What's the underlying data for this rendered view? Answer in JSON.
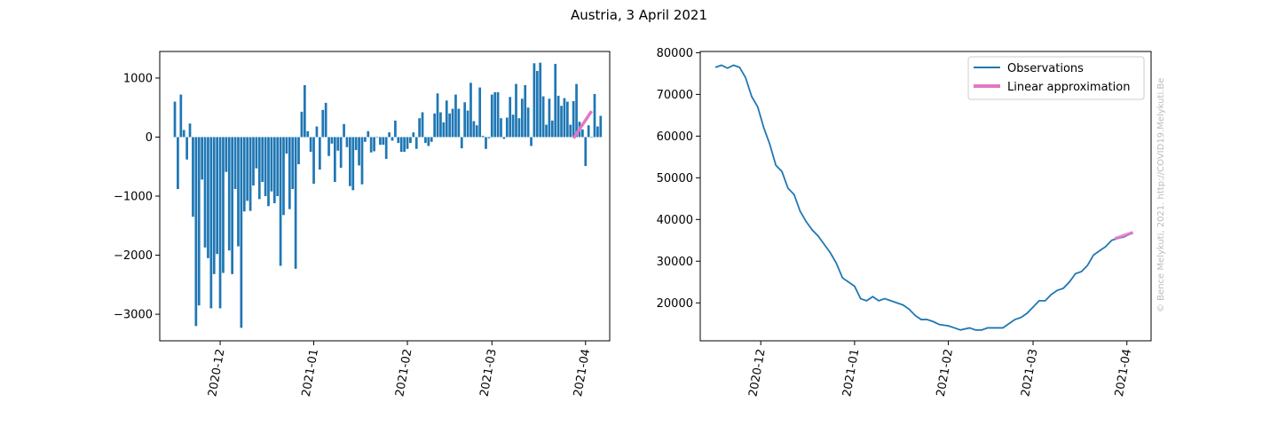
{
  "figure_title": "Austria, 3 April 2021",
  "credit": "© Bence Melykuti, 2021. http://COVID19.Melykuti.Be",
  "colors": {
    "observations": "#1f77b4",
    "linear": "#e377c2",
    "axis": "#000000",
    "credit": "#bbbbbb"
  },
  "chart_data": [
    {
      "type": "bar",
      "title": "",
      "xlabel": "",
      "ylabel": "",
      "x_start_date": "2020-11-16",
      "xlim": [
        "2020-11-11",
        "2021-04-09"
      ],
      "ylim": [
        -3450,
        1450
      ],
      "yticks": [
        -3000,
        -2000,
        -1000,
        0,
        1000
      ],
      "ytick_labels": [
        "−3000",
        "−2000",
        "−1000",
        "0",
        "1000"
      ],
      "xticks": [
        "2020-12-01",
        "2021-01-01",
        "2021-02-01",
        "2021-03-01",
        "2021-04-01"
      ],
      "xtick_labels": [
        "2020-12",
        "2021-01",
        "2021-02",
        "2021-03",
        "2021-04"
      ],
      "grid": false,
      "values": [
        600,
        -880,
        720,
        120,
        -380,
        230,
        -1350,
        -3200,
        -2850,
        -720,
        -1870,
        -2050,
        -2900,
        -2320,
        -1980,
        -2900,
        -2300,
        -590,
        -1920,
        -2320,
        -880,
        -1850,
        -3230,
        -1260,
        -1080,
        -1250,
        -820,
        -530,
        -1050,
        -760,
        -1000,
        -1170,
        -920,
        -1120,
        -1000,
        -2180,
        -1320,
        -280,
        -1220,
        -880,
        -2230,
        -460,
        430,
        880,
        100,
        -250,
        -790,
        180,
        -550,
        460,
        580,
        -320,
        -110,
        -760,
        -230,
        -520,
        220,
        -170,
        -830,
        -900,
        -220,
        -480,
        -800,
        -80,
        100,
        -260,
        -240,
        -10,
        -130,
        -130,
        -370,
        80,
        -60,
        280,
        -100,
        -250,
        -250,
        -200,
        -100,
        80,
        -200,
        320,
        420,
        -100,
        -150,
        -80,
        400,
        740,
        420,
        250,
        620,
        400,
        480,
        720,
        480,
        -190,
        590,
        450,
        920,
        270,
        200,
        840,
        20,
        -200,
        -20,
        720,
        760,
        760,
        320,
        -30,
        330,
        680,
        380,
        900,
        320,
        650,
        880,
        500,
        -150,
        1250,
        1120,
        1260,
        690,
        210,
        650,
        280,
        1240,
        700,
        530,
        660,
        600,
        210,
        610,
        900,
        260,
        130,
        -490,
        200,
        0,
        730,
        180,
        360
      ],
      "series": [
        {
          "name": "Linear approximation",
          "x": [
            "2021-03-28",
            "2021-04-03"
          ],
          "y": [
            -20,
            440
          ]
        }
      ]
    },
    {
      "type": "line",
      "title": "",
      "xlabel": "",
      "ylabel": "",
      "xlim": [
        "2020-11-11",
        "2021-04-09"
      ],
      "ylim": [
        10900,
        80300
      ],
      "yticks": [
        20000,
        30000,
        40000,
        50000,
        60000,
        70000,
        80000
      ],
      "ytick_labels": [
        "20000",
        "30000",
        "40000",
        "50000",
        "60000",
        "70000",
        "80000"
      ],
      "xticks": [
        "2020-12-01",
        "2021-01-01",
        "2021-02-01",
        "2021-03-01",
        "2021-04-01"
      ],
      "xtick_labels": [
        "2020-12",
        "2021-01",
        "2021-02",
        "2021-03",
        "2021-04"
      ],
      "grid": false,
      "legend_position": "top-right",
      "series": [
        {
          "name": "Observations",
          "x": [
            "2020-11-16",
            "2020-11-18",
            "2020-11-20",
            "2020-11-22",
            "2020-11-24",
            "2020-11-26",
            "2020-11-28",
            "2020-11-30",
            "2020-12-02",
            "2020-12-04",
            "2020-12-06",
            "2020-12-08",
            "2020-12-10",
            "2020-12-12",
            "2020-12-14",
            "2020-12-16",
            "2020-12-18",
            "2020-12-20",
            "2020-12-22",
            "2020-12-24",
            "2020-12-26",
            "2020-12-28",
            "2020-12-30",
            "2021-01-01",
            "2021-01-03",
            "2021-01-05",
            "2021-01-07",
            "2021-01-09",
            "2021-01-11",
            "2021-01-13",
            "2021-01-15",
            "2021-01-17",
            "2021-01-19",
            "2021-01-21",
            "2021-01-23",
            "2021-01-25",
            "2021-01-27",
            "2021-01-29",
            "2021-02-01",
            "2021-02-03",
            "2021-02-05",
            "2021-02-08",
            "2021-02-10",
            "2021-02-12",
            "2021-02-14",
            "2021-02-17",
            "2021-02-19",
            "2021-02-21",
            "2021-02-23",
            "2021-02-25",
            "2021-02-27",
            "2021-03-01",
            "2021-03-03",
            "2021-03-05",
            "2021-03-07",
            "2021-03-09",
            "2021-03-11",
            "2021-03-13",
            "2021-03-15",
            "2021-03-17",
            "2021-03-19",
            "2021-03-21",
            "2021-03-23",
            "2021-03-25",
            "2021-03-27",
            "2021-03-29",
            "2021-03-31",
            "2021-04-02",
            "2021-04-03"
          ],
          "y": [
            76500,
            77000,
            76300,
            77000,
            76500,
            74000,
            69500,
            67000,
            62000,
            58000,
            53000,
            51500,
            47500,
            46000,
            42000,
            39500,
            37500,
            36000,
            34000,
            32000,
            29500,
            26000,
            25000,
            24000,
            21000,
            20500,
            21500,
            20500,
            21000,
            20500,
            20000,
            19500,
            18500,
            17000,
            16000,
            16000,
            15500,
            14800,
            14500,
            14000,
            13500,
            14000,
            13500,
            13500,
            14000,
            14000,
            14000,
            15000,
            16000,
            16500,
            17500,
            19000,
            20500,
            20500,
            22000,
            23000,
            23500,
            25000,
            27000,
            27500,
            29000,
            31500,
            32500,
            33500,
            35000,
            35500,
            35800,
            36500,
            36800
          ]
        },
        {
          "name": "Linear approximation",
          "x": [
            "2021-03-28",
            "2021-04-03"
          ],
          "y": [
            35400,
            36900
          ]
        }
      ]
    }
  ]
}
